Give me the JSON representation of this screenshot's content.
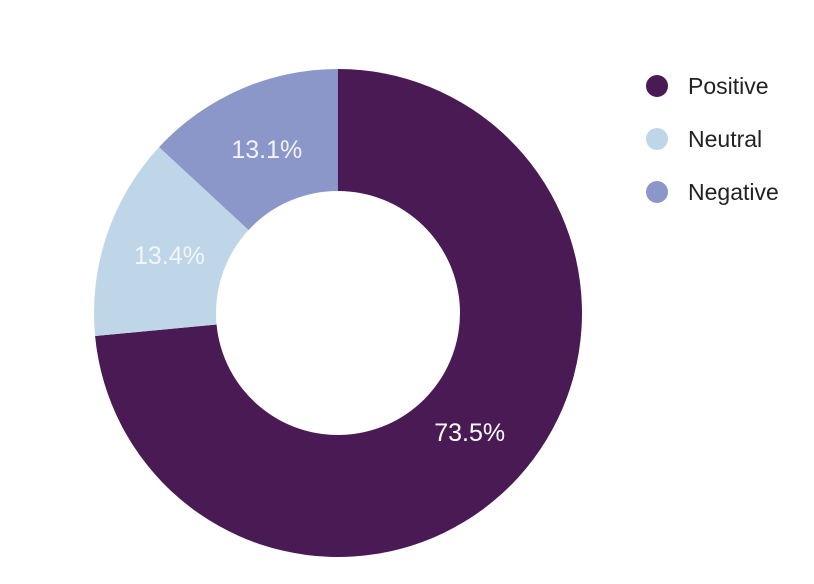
{
  "chart_data": {
    "type": "pie",
    "variant": "donut",
    "categories": [
      "Positive",
      "Neutral",
      "Negative"
    ],
    "values": [
      73.5,
      13.4,
      13.1
    ],
    "labels": [
      "73.5%",
      "13.4%",
      "13.1%"
    ],
    "colors": [
      "#4a1a55",
      "#bfd5e8",
      "#8b97c8"
    ],
    "label_colors": [
      "#ffffff",
      "#f2f6fa",
      "#f2f4fb"
    ],
    "start": "top",
    "direction": "clockwise",
    "legend": {
      "placement": "top-right",
      "items": [
        "Positive",
        "Neutral",
        "Negative"
      ]
    }
  }
}
